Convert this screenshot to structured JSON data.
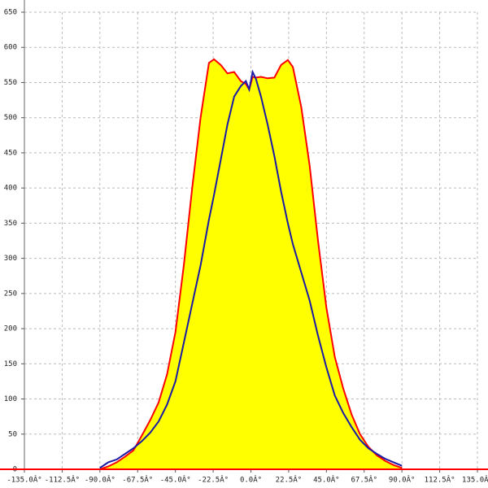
{
  "chart_data": {
    "type": "area",
    "x": [
      -90,
      -85,
      -80,
      -75,
      -70,
      -65,
      -60,
      -55,
      -50,
      -45,
      -40,
      -35,
      -30,
      -25,
      -22,
      -18,
      -14,
      -10,
      -6,
      -3,
      -1,
      1,
      3,
      6,
      10,
      14,
      18,
      22,
      25,
      30,
      35,
      40,
      45,
      50,
      55,
      60,
      65,
      70,
      75,
      80,
      85,
      90
    ],
    "series": [
      {
        "color": "#ff0000",
        "fill": "#ffff00",
        "values": [
          0,
          4,
          10,
          18,
          27,
          48,
          70,
          95,
          135,
          195,
          290,
          400,
          500,
          578,
          583,
          575,
          563,
          565,
          552,
          548,
          540,
          558,
          557,
          558,
          556,
          557,
          575,
          582,
          572,
          515,
          432,
          325,
          230,
          160,
          115,
          78,
          50,
          32,
          20,
          12,
          6,
          2
        ]
      },
      {
        "color": "#1a1aa6",
        "values": [
          2,
          10,
          14,
          22,
          30,
          40,
          52,
          68,
          92,
          125,
          180,
          235,
          290,
          355,
          390,
          440,
          490,
          530,
          545,
          552,
          540,
          565,
          555,
          530,
          490,
          445,
          395,
          350,
          320,
          280,
          240,
          190,
          145,
          105,
          80,
          60,
          42,
          30,
          22,
          15,
          10,
          5
        ]
      }
    ],
    "xlim": [
      -135,
      135
    ],
    "xticks": [
      {
        "value": -135,
        "label": "-135.0Â°"
      },
      {
        "value": -112.5,
        "label": "-112.5Â°"
      },
      {
        "value": -90,
        "label": "-90.0Â°"
      },
      {
        "value": -67.5,
        "label": "-67.5Â°"
      },
      {
        "value": -45,
        "label": "-45.0Â°"
      },
      {
        "value": -22.5,
        "label": "-22.5Â°"
      },
      {
        "value": 0,
        "label": "0.0Â°"
      },
      {
        "value": 22.5,
        "label": "22.5Â°"
      },
      {
        "value": 45,
        "label": "45.0Â°"
      },
      {
        "value": 67.5,
        "label": "67.5Â°"
      },
      {
        "value": 90,
        "label": "90.0Â°"
      },
      {
        "value": 112.5,
        "label": "112.5Â°"
      },
      {
        "value": 135,
        "label": "135.0Â°"
      }
    ],
    "ylim": [
      0,
      650
    ],
    "yticks": [
      0,
      50,
      100,
      150,
      200,
      250,
      300,
      350,
      400,
      450,
      500,
      550,
      600,
      650
    ],
    "grid": true
  }
}
